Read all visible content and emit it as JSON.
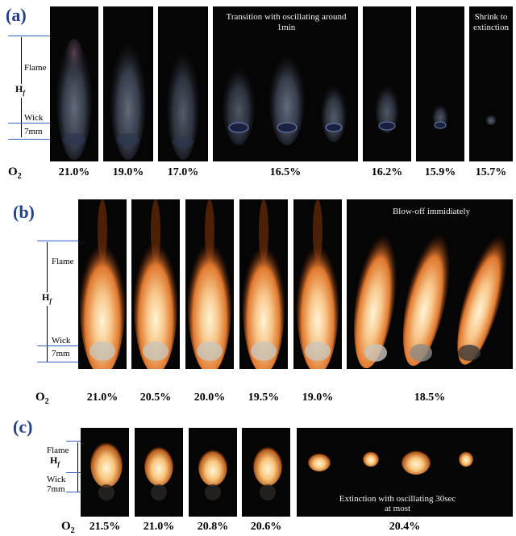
{
  "panels": {
    "a": {
      "label": "(a)",
      "o2_label": "O",
      "o2_sub": "2",
      "values": [
        "21.0%",
        "19.0%",
        "17.0%",
        "16.5%",
        "16.2%",
        "15.9%",
        "15.7%"
      ],
      "caption_transition": "Transition with oscillating around 1min",
      "caption_shrink": "Shrink to extinction",
      "ann_flame": "Flame",
      "ann_h": "H",
      "ann_h_sub": "f",
      "ann_wick": "Wick",
      "ann_7mm": "7mm"
    },
    "b": {
      "label": "(b)",
      "o2_label": "O",
      "o2_sub": "2",
      "values": [
        "21.0%",
        "20.5%",
        "20.0%",
        "19.5%",
        "19.0%",
        "18.5%"
      ],
      "caption_blowoff": "Blow-off immidiately",
      "ann_flame": "Flame",
      "ann_h": "H",
      "ann_h_sub": "f",
      "ann_wick": "Wick",
      "ann_7mm": "7mm"
    },
    "c": {
      "label": "(c)",
      "o2_label": "O",
      "o2_sub": "2",
      "values": [
        "21.5%",
        "21.0%",
        "20.8%",
        "20.6%",
        "20.4%"
      ],
      "caption_extinction": "Extinction with oscillating 30sec at most",
      "ann_flame": "Flame",
      "ann_h": "H",
      "ann_h_sub": "f",
      "ann_wick": "Wick",
      "ann_7mm": "7mm"
    }
  },
  "colors": {
    "label_blue": "#1f3f8f",
    "marker_blue": "#3a63c6",
    "photo_bg": "#050505"
  }
}
